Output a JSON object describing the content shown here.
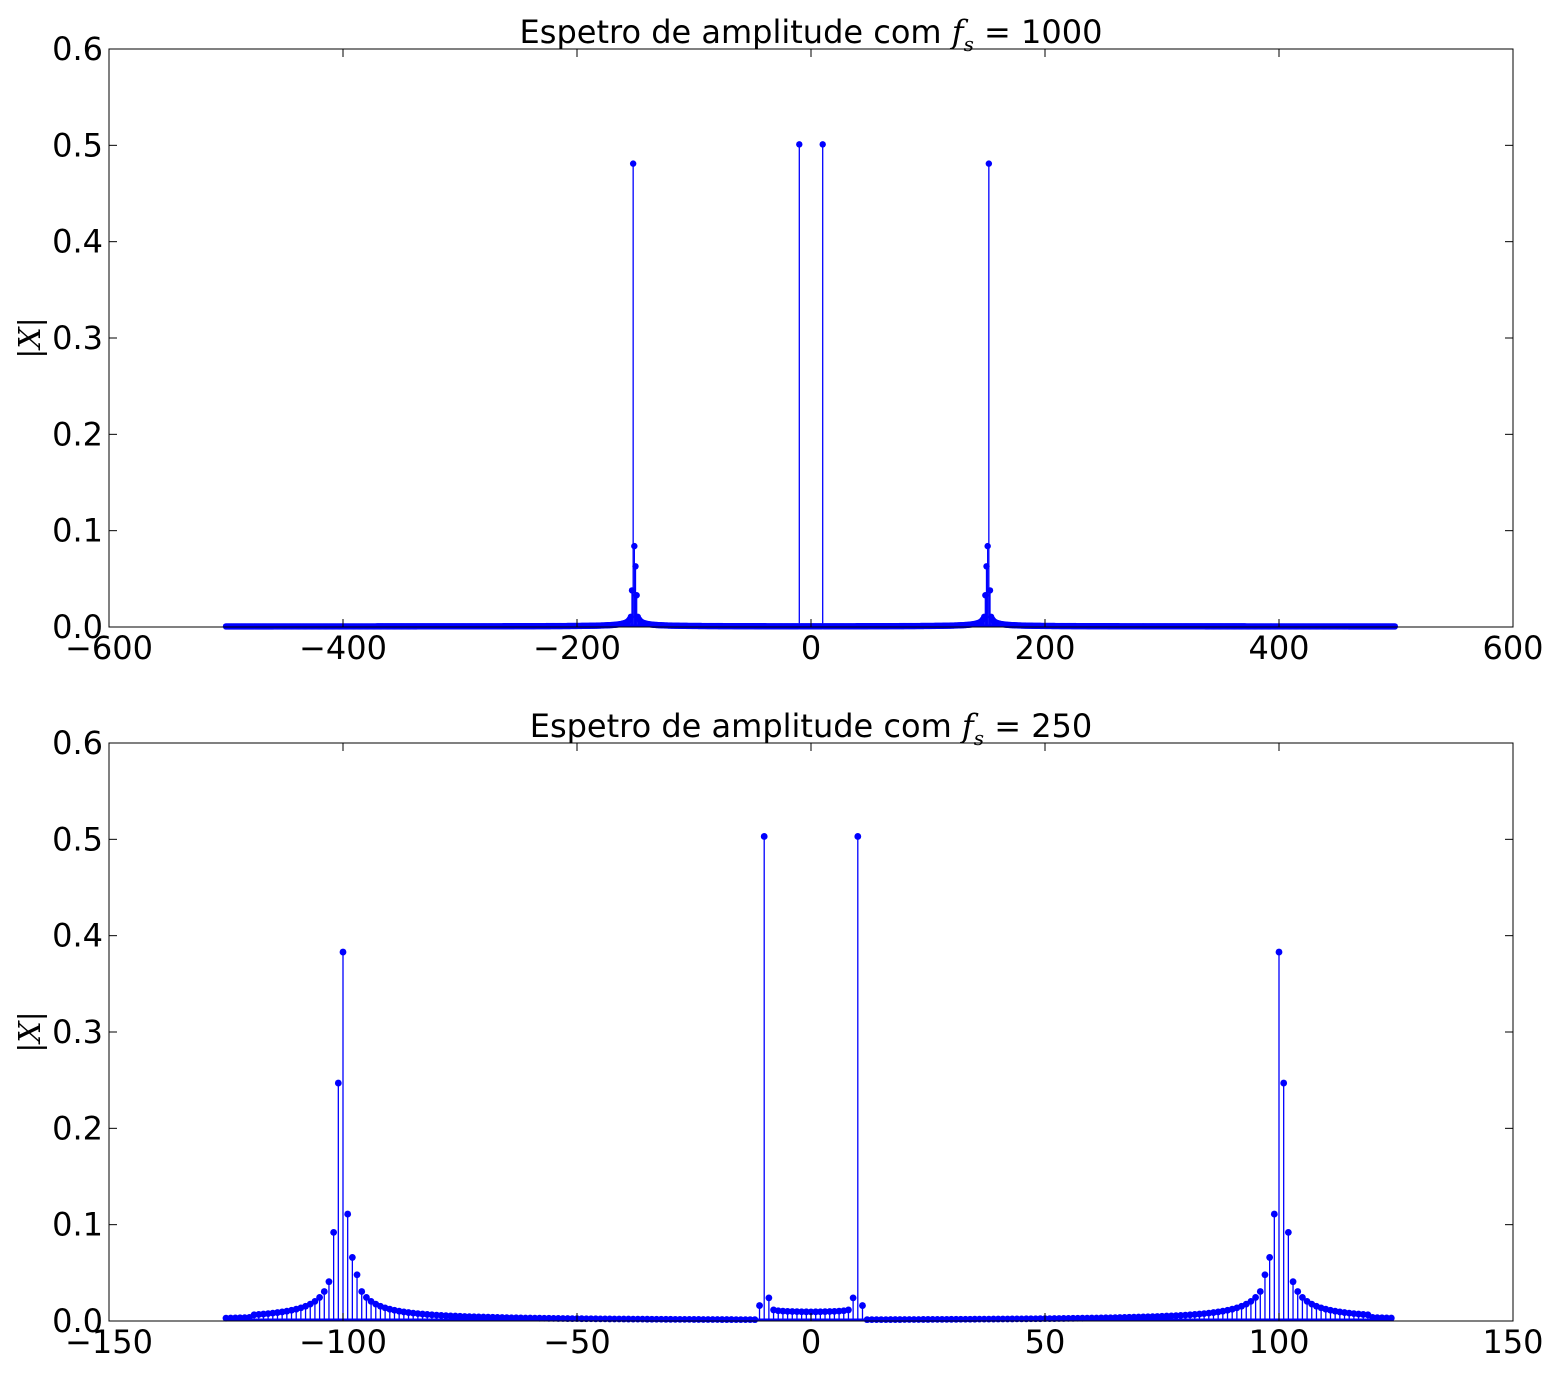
{
  "chart_data": [
    {
      "type": "stem",
      "title": "Espetro de amplitude com f_s = 1000",
      "title_text": "Espetro de amplitude com ",
      "title_math": "f",
      "title_sub": "s",
      "title_eq": "= 1000",
      "ylabel": "|X|",
      "xlabel": "",
      "xlim": [
        -600,
        600
      ],
      "ylim": [
        0,
        0.6
      ],
      "xticks": [
        "−600",
        "−400",
        "−200",
        "0",
        "200",
        "400",
        "600"
      ],
      "xtick_values": [
        -600,
        -400,
        -200,
        0,
        200,
        400,
        600
      ],
      "yticks": [
        "0.0",
        "0.1",
        "0.2",
        "0.3",
        "0.4",
        "0.5",
        "0.6"
      ],
      "ytick_values": [
        0,
        0.1,
        0.2,
        0.3,
        0.4,
        0.5,
        0.6
      ],
      "grid": false,
      "sample_range": [
        -500,
        499
      ],
      "peaks": [
        {
          "x": -152,
          "y": 0.481
        },
        {
          "x": -151,
          "y": 0.084
        },
        {
          "x": -150,
          "y": 0.063
        },
        {
          "x": -153,
          "y": 0.038
        },
        {
          "x": -149,
          "y": 0.033
        },
        {
          "x": -10,
          "y": 0.501
        },
        {
          "x": 10,
          "y": 0.501
        },
        {
          "x": 152,
          "y": 0.481
        },
        {
          "x": 151,
          "y": 0.084
        },
        {
          "x": 150,
          "y": 0.063
        },
        {
          "x": 153,
          "y": 0.038
        },
        {
          "x": 149,
          "y": 0.033
        }
      ],
      "leakage_around": [
        -151,
        151
      ],
      "leakage_peak": 0.025
    },
    {
      "type": "stem",
      "title": "Espetro de amplitude com f_s = 250",
      "title_text": "Espetro de amplitude com ",
      "title_math": "f",
      "title_sub": "s",
      "title_eq": "= 250",
      "ylabel": "|X|",
      "xlabel": "",
      "xlim": [
        -150,
        150
      ],
      "ylim": [
        0,
        0.6
      ],
      "xticks": [
        "−150",
        "−100",
        "−50",
        "0",
        "50",
        "100",
        "150"
      ],
      "xtick_values": [
        -150,
        -100,
        -50,
        0,
        50,
        100,
        150
      ],
      "yticks": [
        "0.0",
        "0.1",
        "0.2",
        "0.3",
        "0.4",
        "0.5",
        "0.6"
      ],
      "ytick_values": [
        0,
        0.1,
        0.2,
        0.3,
        0.4,
        0.5,
        0.6
      ],
      "grid": false,
      "sample_range": [
        -125,
        124
      ],
      "peaks": [
        {
          "x": -100,
          "y": 0.383
        },
        {
          "x": -101,
          "y": 0.247
        },
        {
          "x": -102,
          "y": 0.092
        },
        {
          "x": -99,
          "y": 0.111
        },
        {
          "x": -98,
          "y": 0.066
        },
        {
          "x": -97,
          "y": 0.048
        },
        {
          "x": -10,
          "y": 0.503
        },
        {
          "x": -11,
          "y": 0.016
        },
        {
          "x": -9,
          "y": 0.024
        },
        {
          "x": 9,
          "y": 0.024
        },
        {
          "x": 11,
          "y": 0.016
        },
        {
          "x": 10,
          "y": 0.503
        },
        {
          "x": 100,
          "y": 0.383
        },
        {
          "x": 101,
          "y": 0.247
        },
        {
          "x": 102,
          "y": 0.092
        },
        {
          "x": 99,
          "y": 0.111
        },
        {
          "x": 98,
          "y": 0.066
        },
        {
          "x": 97,
          "y": 0.048
        }
      ]
    }
  ]
}
